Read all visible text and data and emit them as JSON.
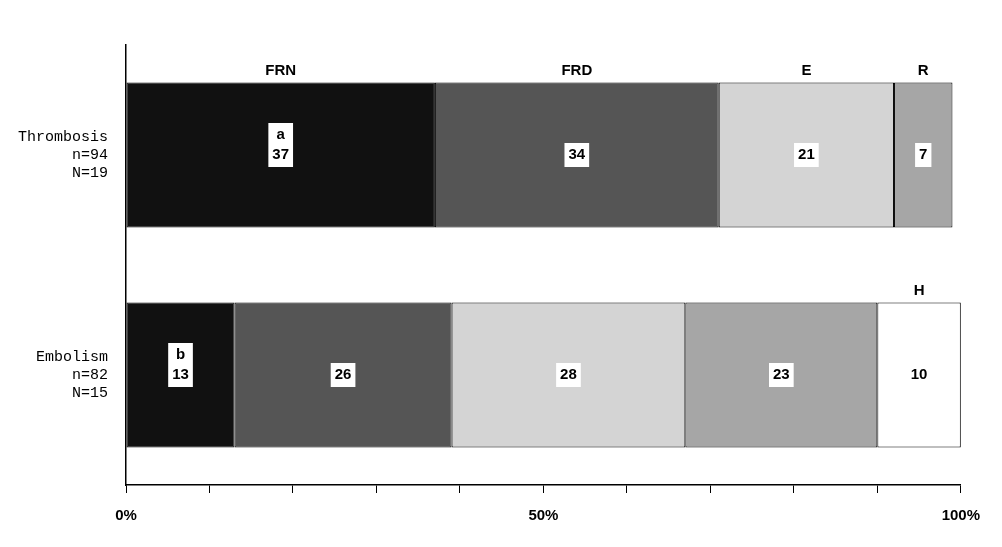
{
  "chart_data": {
    "type": "bar",
    "orientation": "horizontal",
    "stacked": true,
    "data_labels": true,
    "grid": false,
    "categories": [
      "Thrombosis\nn=94\nN=19",
      "Embolism\nn=82\nN=15"
    ],
    "series": [
      {
        "name": "FRN",
        "color": "#111111",
        "values": [
          37,
          13
        ]
      },
      {
        "name": "FRD",
        "color": "#555555",
        "values": [
          34,
          26
        ]
      },
      {
        "name": "E",
        "color": "#d4d4d4",
        "values": [
          21,
          28
        ]
      },
      {
        "name": "R",
        "color": "#a6a6a6",
        "values": [
          7,
          23
        ]
      },
      {
        "name": "H",
        "color": "#ffffff",
        "values": [
          null,
          10
        ]
      }
    ],
    "xlim": [
      0,
      100
    ],
    "xticks": [
      {
        "value": 0,
        "label": "0%"
      },
      {
        "value": 10,
        "label": null
      },
      {
        "value": 20,
        "label": null
      },
      {
        "value": 30,
        "label": null
      },
      {
        "value": 40,
        "label": null
      },
      {
        "value": 50,
        "label": "50%"
      },
      {
        "value": 60,
        "label": null
      },
      {
        "value": 70,
        "label": null
      },
      {
        "value": 80,
        "label": null
      },
      {
        "value": 90,
        "label": null
      },
      {
        "value": 100,
        "label": "100%"
      }
    ],
    "annotations": [
      "a",
      "b"
    ]
  }
}
